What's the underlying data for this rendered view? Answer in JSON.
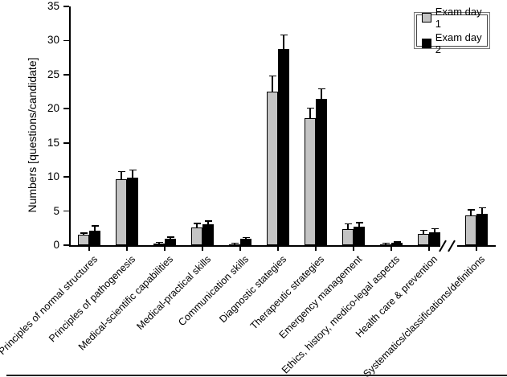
{
  "figure": {
    "legend_title_day1": "Exam day 1",
    "legend_title_day2": "Exam day 2"
  },
  "chart_data": {
    "type": "bar",
    "title": "",
    "xlabel": "",
    "ylabel": "Numbers [questions/candidate]",
    "ylim": [
      0,
      35
    ],
    "yticks": [
      0,
      5,
      10,
      15,
      20,
      25,
      30,
      35
    ],
    "grid": false,
    "legend_position": "top-right",
    "error_bars": "upper",
    "axis_break_after_category_index": 9,
    "categories": [
      "Principles of normal structures",
      "Principles of pathogenesis",
      "Medical-scientific capabilities",
      "Medical-practical skills",
      "Communication skills",
      "Diagnostic stategies",
      "Therapeutic strategies",
      "Emergency management",
      "Ethics, history, medico-legal aspects",
      "Health care & prevention",
      "Systematics/classifications/definitions"
    ],
    "series": [
      {
        "name": "Exam day 1",
        "color": "#c4c4c4",
        "values": [
          1.5,
          9.7,
          0.25,
          2.6,
          0.15,
          22.5,
          18.6,
          2.3,
          0.15,
          1.7,
          4.4
        ],
        "errors": [
          0.3,
          1.1,
          0.15,
          0.6,
          0.1,
          2.3,
          1.5,
          0.8,
          0.1,
          0.5,
          0.8
        ]
      },
      {
        "name": "Exam day 2",
        "color": "#000000",
        "values": [
          2.1,
          9.9,
          0.9,
          3.1,
          0.95,
          28.7,
          21.5,
          2.7,
          0.35,
          1.9,
          4.6
        ],
        "errors": [
          0.7,
          1.1,
          0.25,
          0.4,
          0.15,
          2.1,
          1.4,
          0.6,
          0.12,
          0.5,
          0.9
        ]
      }
    ]
  }
}
